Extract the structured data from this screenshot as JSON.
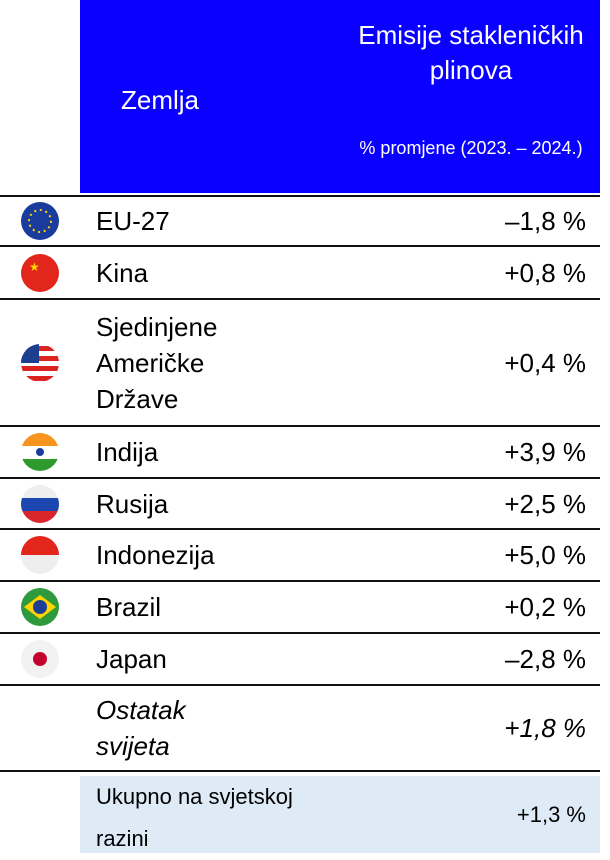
{
  "header": {
    "country": "Zemlja",
    "metric": "Emisije stakleničkih plinova",
    "unit": "% promjene (2023. – 2024.)"
  },
  "rows": [
    {
      "country": "EU-27",
      "change": "–1,8 %"
    },
    {
      "country": "Kina",
      "change": "+0,8 %"
    },
    {
      "country": "Sjedinjene Američke Države",
      "change": "+0,4 %"
    },
    {
      "country": "Indija",
      "change": "+3,9 %"
    },
    {
      "country": "Rusija",
      "change": "+2,5 %"
    },
    {
      "country": "Indonezija",
      "change": "+5,0 %"
    },
    {
      "country": "Brazil",
      "change": "+0,2 %"
    },
    {
      "country": "Japan",
      "change": "–2,8 %"
    },
    {
      "country": "Ostatak svijeta",
      "change": "+1,8 %"
    }
  ],
  "total": {
    "country": "Ukupno na svjetskoj razini",
    "change": "+1,3 %"
  }
}
